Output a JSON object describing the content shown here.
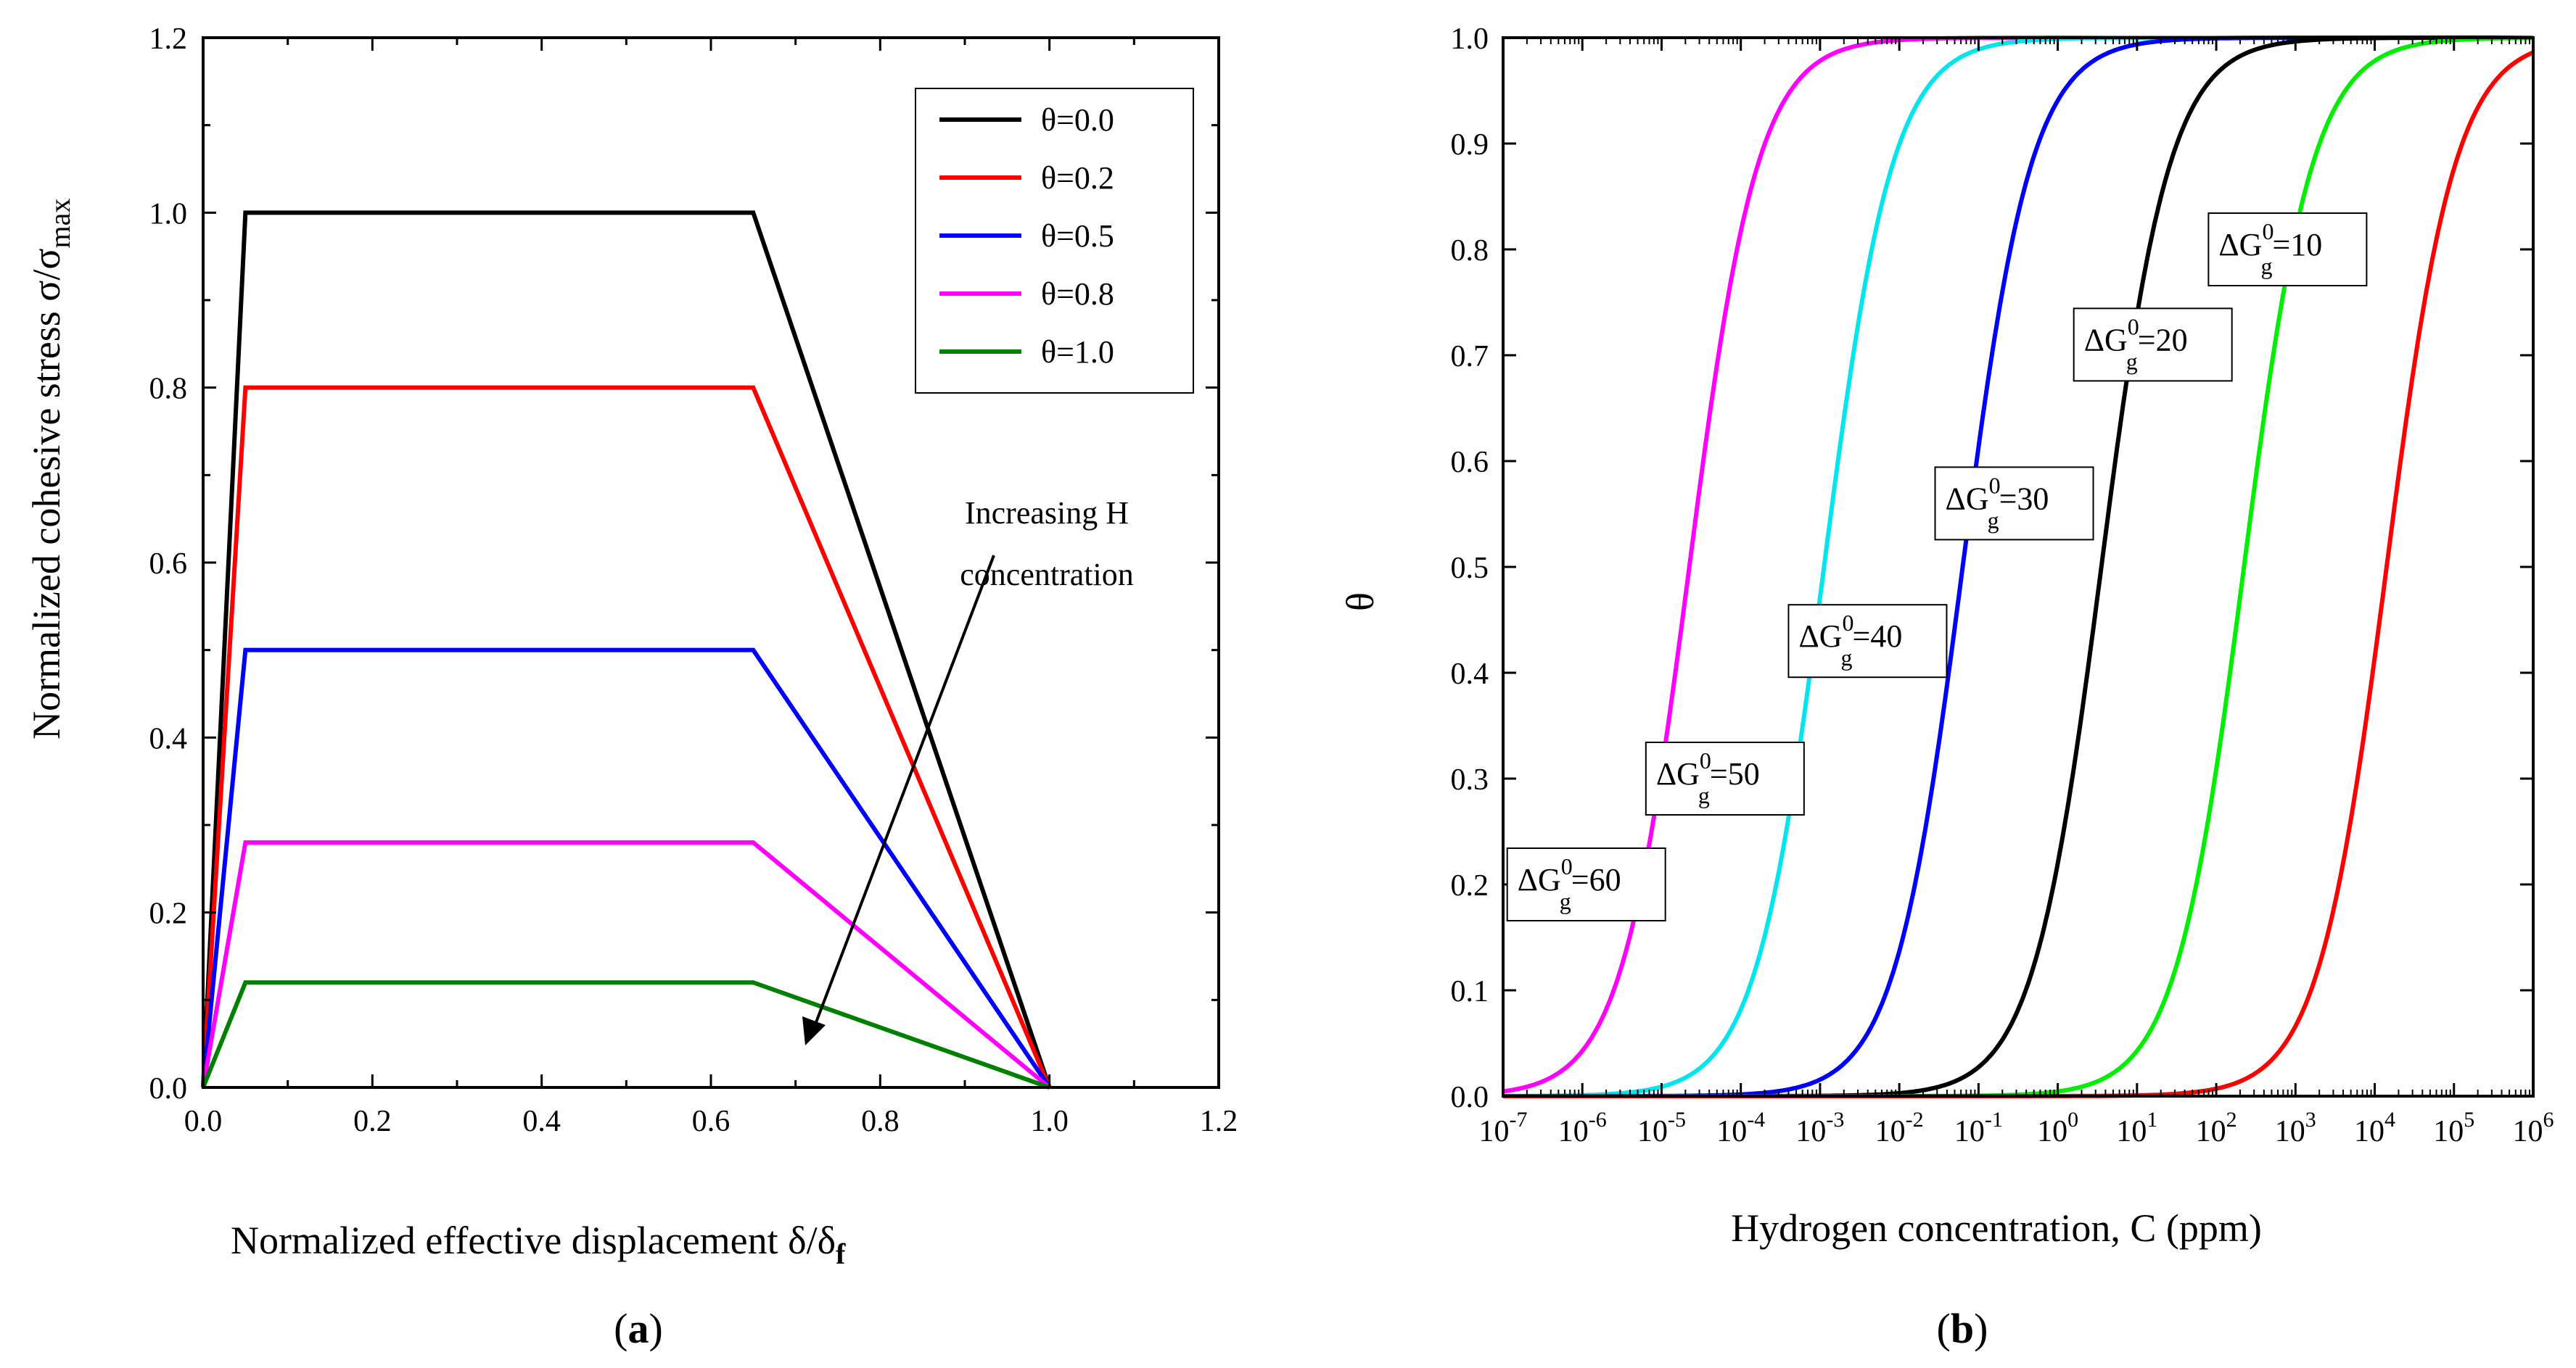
{
  "chart_data": [
    {
      "type": "line",
      "panel_label": "a",
      "xlabel": "Normalized effective displacement  δ/δ",
      "xlabel_sub": "f",
      "ylabel": "Normalized cohesive stress  σ/σ",
      "ylabel_sub": "max",
      "xlim": [
        0.0,
        1.2
      ],
      "ylim": [
        0.0,
        1.2
      ],
      "xticks": [
        "0.0",
        "0.2",
        "0.4",
        "0.6",
        "0.8",
        "1.0",
        "1.2"
      ],
      "yticks": [
        "0.0",
        "0.2",
        "0.4",
        "0.6",
        "0.8",
        "1.0",
        "1.2"
      ],
      "legend_position": "top-right",
      "annotation": [
        "Increasing H",
        "concentration"
      ],
      "series": [
        {
          "name": "θ=0.0",
          "color": "#000000",
          "x": [
            0,
            0.05,
            0.65,
            1.0
          ],
          "y": [
            0,
            1.0,
            1.0,
            0
          ]
        },
        {
          "name": "θ=0.2",
          "color": "#ff0000",
          "x": [
            0,
            0.05,
            0.65,
            1.0
          ],
          "y": [
            0,
            0.8,
            0.8,
            0
          ]
        },
        {
          "name": "θ=0.5",
          "color": "#0000ff",
          "x": [
            0,
            0.05,
            0.65,
            1.0
          ],
          "y": [
            0,
            0.5,
            0.5,
            0
          ]
        },
        {
          "name": "θ=0.8",
          "color": "#ff00ff",
          "x": [
            0,
            0.05,
            0.65,
            1.0
          ],
          "y": [
            0,
            0.28,
            0.28,
            0
          ]
        },
        {
          "name": "θ=1.0",
          "color": "#008000",
          "x": [
            0,
            0.05,
            0.65,
            1.0
          ],
          "y": [
            0,
            0.12,
            0.12,
            0
          ]
        }
      ]
    },
    {
      "type": "line",
      "panel_label": "b",
      "xlabel": "Hydrogen concentration, C (ppm)",
      "ylabel": "θ",
      "xscale": "log",
      "xlim_log10": [
        -7,
        6
      ],
      "ylim": [
        0.0,
        1.0
      ],
      "xtick_exponents": [
        "-7",
        "-6",
        "-5",
        "-4",
        "-3",
        "-2",
        "-1",
        "0",
        "1",
        "2",
        "3",
        "4",
        "5",
        "6"
      ],
      "xtick_base": "10",
      "yticks": [
        "0.0",
        "0.1",
        "0.2",
        "0.3",
        "0.4",
        "0.5",
        "0.6",
        "0.7",
        "0.8",
        "0.9",
        "1.0"
      ],
      "curve_model": "theta = C/(C + C_half)",
      "series": [
        {
          "name": "ΔGg0=60",
          "label_main": "ΔG",
          "label_sup": "0",
          "label_sub": "g",
          "label_value": "=60",
          "color": "#ff00ff",
          "half_log10": -4.65,
          "label_anchor_log10": -5.95,
          "label_anchor_theta": 0.2
        },
        {
          "name": "ΔGg0=50",
          "label_main": "ΔG",
          "label_sup": "0",
          "label_sub": "g",
          "label_value": "=50",
          "color": "#00e5ee",
          "half_log10": -2.95,
          "label_anchor_log10": -4.2,
          "label_anchor_theta": 0.3
        },
        {
          "name": "ΔGg0=40",
          "label_main": "ΔG",
          "label_sup": "0",
          "label_sub": "g",
          "label_value": "=40",
          "color": "#0000ff",
          "half_log10": -1.2,
          "label_anchor_log10": -2.4,
          "label_anchor_theta": 0.43
        },
        {
          "name": "ΔGg0=30",
          "label_main": "ΔG",
          "label_sup": "0",
          "label_sub": "g",
          "label_value": "=30",
          "color": "#000000",
          "half_log10": 0.55,
          "label_anchor_log10": -0.55,
          "label_anchor_theta": 0.56
        },
        {
          "name": "ΔGg0=20",
          "label_main": "ΔG",
          "label_sup": "0",
          "label_sub": "g",
          "label_value": "=20",
          "color": "#00ee00",
          "half_log10": 2.35,
          "label_anchor_log10": 1.2,
          "label_anchor_theta": 0.71
        },
        {
          "name": "ΔGg0=10",
          "label_main": "ΔG",
          "label_sup": "0",
          "label_sub": "g",
          "label_value": "=10",
          "color": "#ff0000",
          "half_log10": 4.15,
          "label_anchor_log10": 2.9,
          "label_anchor_theta": 0.8
        }
      ]
    }
  ]
}
